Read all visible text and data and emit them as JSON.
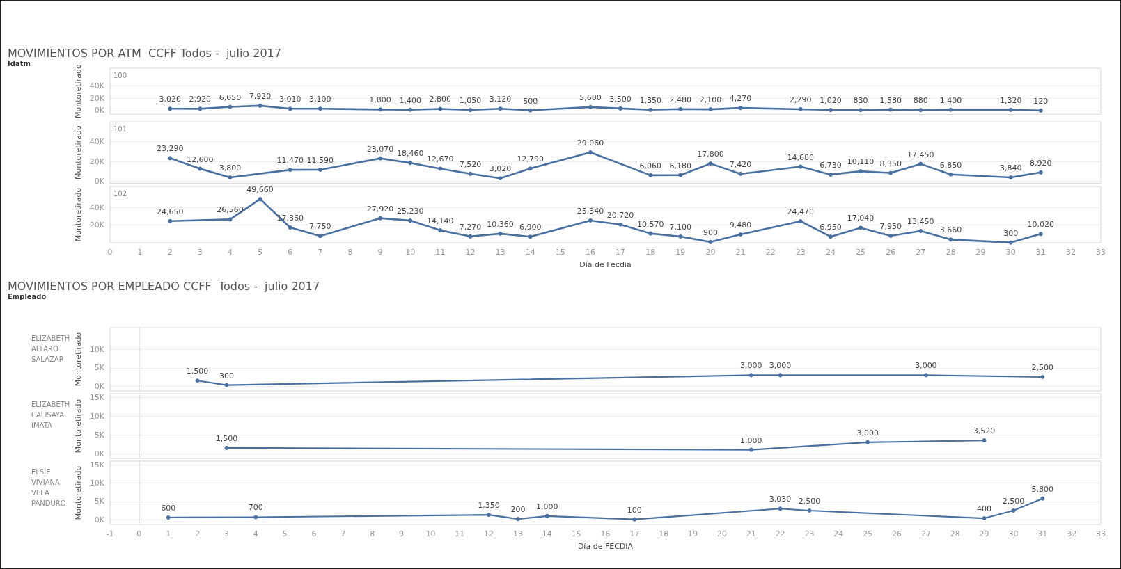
{
  "chart_data": [
    {
      "type": "line",
      "title": "100",
      "ylabel": "Montoretirado",
      "annotations": [
        "MOVIMIENTOS POR ATM  CCFF Todos -  julio 2017",
        "Idatm"
      ],
      "color": "#4a70a0",
      "marker": "circle",
      "grid": "y",
      "tick_labels": "y",
      "x": [
        2,
        3,
        4,
        5,
        6,
        7,
        9,
        10,
        11,
        12,
        13,
        14,
        16,
        17,
        18,
        19,
        20,
        21,
        23,
        24,
        25,
        26,
        27,
        28,
        30,
        31
      ],
      "values": [
        3020,
        2920,
        6050,
        7920,
        3010,
        3100,
        1800,
        1400,
        2800,
        1050,
        3120,
        500,
        5680,
        3500,
        1350,
        2480,
        2100,
        4270,
        2290,
        1020,
        830,
        1580,
        880,
        1400,
        1320,
        120
      ],
      "value_labels": [
        "3,020",
        "2,920",
        "6,050",
        "7,920",
        "3,010",
        "3,100",
        "1,800",
        "1,400",
        "2,800",
        "1,050",
        "3,120",
        "500",
        "5,680",
        "3,500",
        "1,350",
        "2,480",
        "2,100",
        "4,270",
        "2,290",
        "1,020",
        "830",
        "1,580",
        "880",
        "1,400",
        "1,320",
        "120"
      ],
      "xlim": [
        0,
        33
      ],
      "xticks": [
        0,
        1,
        2,
        3,
        4,
        5,
        6,
        7,
        8,
        9,
        10,
        11,
        12,
        13,
        14,
        15,
        16,
        17,
        18,
        19,
        20,
        21,
        22,
        23,
        24,
        25,
        26,
        27,
        28,
        29,
        30,
        31,
        32,
        33
      ],
      "ylim": [
        -6000,
        68000
      ],
      "yticks": [
        {
          "value": 0,
          "label": "0K"
        },
        {
          "value": 20000,
          "label": "20K"
        },
        {
          "value": 40000,
          "label": "40K"
        }
      ]
    },
    {
      "type": "line",
      "title": "101",
      "ylabel": "Montoretirado",
      "color": "#4a70a0",
      "marker": "circle",
      "grid": "y",
      "tick_labels": "y",
      "x": [
        2,
        3,
        4,
        6,
        7,
        9,
        10,
        11,
        12,
        13,
        14,
        16,
        18,
        19,
        20,
        21,
        23,
        24,
        25,
        26,
        27,
        28,
        30,
        31
      ],
      "values": [
        23290,
        12600,
        3800,
        11470,
        11590,
        23070,
        18460,
        12670,
        7520,
        3020,
        12790,
        29060,
        6060,
        6180,
        17800,
        7420,
        14680,
        6730,
        10110,
        8350,
        17450,
        6850,
        3840,
        8920
      ],
      "value_labels": [
        "23,290",
        "12,600",
        "3,800",
        "11,470",
        "11,590",
        "23,070",
        "18,460",
        "12,670",
        "7,520",
        "3,020",
        "12,790",
        "29,060",
        "6,060",
        "6,180",
        "17,800",
        "7,420",
        "14,680",
        "6,730",
        "10,110",
        "8,350",
        "17,450",
        "6,850",
        "3,840",
        "8,920"
      ],
      "xlim": [
        0,
        33
      ],
      "xticks": [
        0,
        1,
        2,
        3,
        4,
        5,
        6,
        7,
        8,
        9,
        10,
        11,
        12,
        13,
        14,
        15,
        16,
        17,
        18,
        19,
        20,
        21,
        22,
        23,
        24,
        25,
        26,
        27,
        28,
        29,
        30,
        31,
        32,
        33
      ],
      "ylim": [
        -2000,
        60000
      ],
      "yticks": [
        {
          "value": 0,
          "label": "0K"
        },
        {
          "value": 20000,
          "label": "20K"
        },
        {
          "value": 40000,
          "label": "40K"
        }
      ]
    },
    {
      "type": "line",
      "title": "102",
      "ylabel": "Montoretirado",
      "xlabel": "Día de Fecdia",
      "color": "#4a70a0",
      "marker": "circle",
      "grid": "y",
      "x": [
        2,
        4,
        5,
        6,
        7,
        9,
        10,
        11,
        12,
        13,
        14,
        16,
        17,
        18,
        19,
        20,
        21,
        23,
        24,
        25,
        26,
        27,
        28,
        30,
        31
      ],
      "values": [
        24650,
        26560,
        49660,
        17360,
        7750,
        27920,
        25230,
        14140,
        7270,
        10360,
        6900,
        25340,
        20720,
        10570,
        7100,
        900,
        9480,
        24470,
        6950,
        17040,
        7950,
        13450,
        3660,
        300,
        10020
      ],
      "value_labels": [
        "24,650",
        "26,560",
        "49,660",
        "17,360",
        "7,750",
        "27,920",
        "25,230",
        "14,140",
        "7,270",
        "10,360",
        "6,900",
        "25,340",
        "20,720",
        "10,570",
        "7,100",
        "900",
        "9,480",
        "24,470",
        "6,950",
        "17,040",
        "7,950",
        "13,450",
        "3,660",
        "300",
        "10,020"
      ],
      "xlim": [
        0,
        33
      ],
      "xticks": [
        0,
        1,
        2,
        3,
        4,
        5,
        6,
        7,
        8,
        9,
        10,
        11,
        12,
        13,
        14,
        15,
        16,
        17,
        18,
        19,
        20,
        21,
        22,
        23,
        24,
        25,
        26,
        27,
        28,
        29,
        30,
        31,
        32,
        33
      ],
      "ylim": [
        0,
        64000
      ],
      "yticks": [
        {
          "value": 20000,
          "label": "20K"
        },
        {
          "value": 40000,
          "label": "40K"
        }
      ]
    },
    {
      "type": "line",
      "title": "ELIZABETH ALFARO SALAZAR",
      "ylabel": "Montoretirado",
      "annotations": [
        "MOVIMIENTOS POR EMPLEADO CCFF  Todos -  julio 2017",
        "Empleado"
      ],
      "color": "#4a70a0",
      "marker": "circle",
      "grid": "y",
      "tick_labels": "y",
      "x": [
        2,
        3,
        21,
        22,
        27,
        31
      ],
      "values": [
        1500,
        300,
        3000,
        3000,
        3000,
        2500
      ],
      "value_labels": [
        "1,500",
        "300",
        "3,000",
        "3,000",
        "3,000",
        "2,500"
      ],
      "xlim": [
        -1,
        33
      ],
      "xticks": [
        -1,
        0,
        1,
        2,
        3,
        4,
        5,
        6,
        7,
        8,
        9,
        10,
        11,
        12,
        13,
        14,
        15,
        16,
        17,
        18,
        19,
        20,
        21,
        22,
        23,
        24,
        25,
        26,
        27,
        28,
        29,
        30,
        31,
        32,
        33
      ],
      "ylim": [
        -1300,
        16000
      ],
      "yticks": [
        {
          "value": 0,
          "label": "0K"
        },
        {
          "value": 5000,
          "label": "5K"
        },
        {
          "value": 10000,
          "label": "10K"
        }
      ],
      "ref_lines": [
        {
          "axis": "x",
          "value": 0,
          "line_style": "dotted",
          "color": "#d0d0d0"
        }
      ]
    },
    {
      "type": "line",
      "title": "ELIZABETH CALISAYA IMATA",
      "ylabel": "Montoretirado",
      "color": "#4a70a0",
      "marker": "circle",
      "grid": "y",
      "tick_labels": "y",
      "x": [
        3,
        21,
        25,
        29
      ],
      "values": [
        1500,
        1000,
        3000,
        3520
      ],
      "value_labels": [
        "1,500",
        "1,000",
        "3,000",
        "3,520"
      ],
      "xlim": [
        -1,
        33
      ],
      "xticks": [
        -1,
        0,
        1,
        2,
        3,
        4,
        5,
        6,
        7,
        8,
        9,
        10,
        11,
        12,
        13,
        14,
        15,
        16,
        17,
        18,
        19,
        20,
        21,
        22,
        23,
        24,
        25,
        26,
        27,
        28,
        29,
        30,
        31,
        32,
        33
      ],
      "ylim": [
        -1300,
        16000
      ],
      "yticks": [
        {
          "value": 0,
          "label": "0K"
        },
        {
          "value": 5000,
          "label": "5K"
        },
        {
          "value": 10000,
          "label": "10K"
        },
        {
          "value": 15000,
          "label": "15K"
        }
      ],
      "ref_lines": [
        {
          "axis": "x",
          "value": 0,
          "line_style": "dotted",
          "color": "#d0d0d0"
        }
      ]
    },
    {
      "type": "line",
      "title": "ELSIE VIVIANA VELA PANDURO",
      "ylabel": "Montoretirado",
      "xlabel": "Día de FECDIA",
      "color": "#4a70a0",
      "marker": "circle",
      "grid": "y",
      "x": [
        1,
        4,
        12,
        13,
        14,
        17,
        22,
        23,
        29,
        30,
        31
      ],
      "values": [
        600,
        700,
        1350,
        200,
        1000,
        100,
        3030,
        2500,
        400,
        2500,
        5800
      ],
      "value_labels": [
        "600",
        "700",
        "1,350",
        "200",
        "1,000",
        "100",
        "3,030",
        "2,500",
        "400",
        "2,500",
        "5,800"
      ],
      "xlim": [
        -1,
        33
      ],
      "xticks": [
        -1,
        0,
        1,
        2,
        3,
        4,
        5,
        6,
        7,
        8,
        9,
        10,
        11,
        12,
        13,
        14,
        15,
        16,
        17,
        18,
        19,
        20,
        21,
        22,
        23,
        24,
        25,
        26,
        27,
        28,
        29,
        30,
        31,
        32,
        33
      ],
      "ylim": [
        -1300,
        16000
      ],
      "yticks": [
        {
          "value": 0,
          "label": "0K"
        },
        {
          "value": 5000,
          "label": "5K"
        },
        {
          "value": 10000,
          "label": "10K"
        },
        {
          "value": 15000,
          "label": "15K"
        }
      ],
      "ref_lines": [
        {
          "axis": "x",
          "value": 0,
          "line_style": "dotted",
          "color": "#d0d0d0"
        }
      ]
    }
  ]
}
